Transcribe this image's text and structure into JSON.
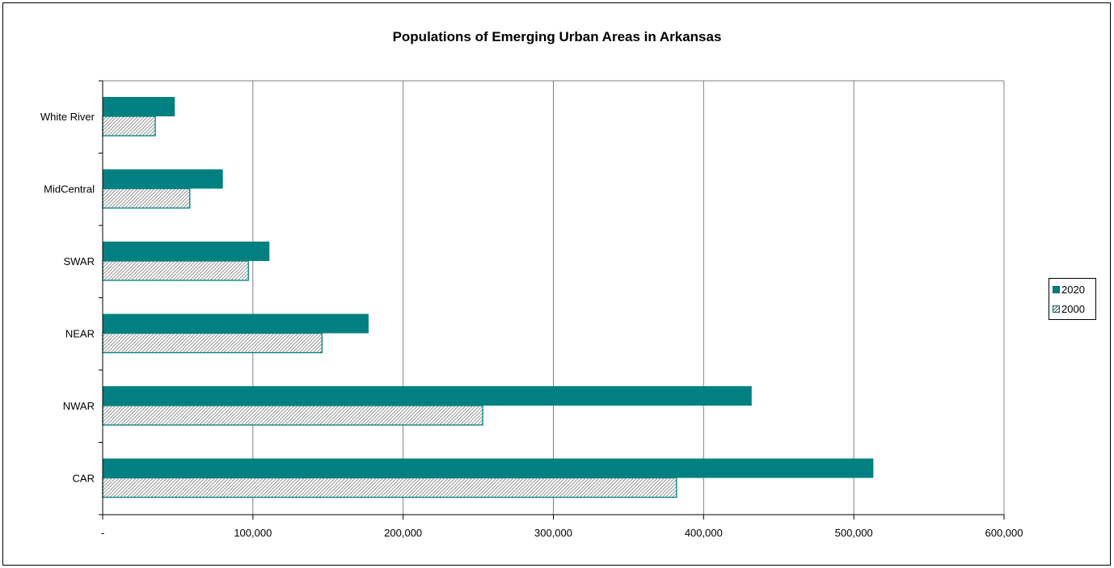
{
  "chart_data": {
    "type": "bar",
    "orientation": "horizontal",
    "title": "Populations of Emerging Urban Areas in Arkansas",
    "categories": [
      "White River",
      "MidCentral",
      "SWAR",
      "NEAR",
      "NWAR",
      "CAR"
    ],
    "series": [
      {
        "name": "2020",
        "values": [
          48000,
          80000,
          111000,
          177000,
          432000,
          513000
        ],
        "color": "#008080",
        "fill": "solid"
      },
      {
        "name": "2000",
        "values": [
          35000,
          58000,
          97000,
          146000,
          253000,
          382000
        ],
        "color": "#008080",
        "fill": "hatched"
      }
    ],
    "xlim": [
      0,
      600000
    ],
    "xticks": [
      "-",
      "100,000",
      "200,000",
      "300,000",
      "400,000",
      "500,000",
      "600,000"
    ],
    "grid": true,
    "plot_background": "#ffffff",
    "legend_position": "right"
  },
  "legend": {
    "items": [
      "2020",
      "2000"
    ]
  }
}
